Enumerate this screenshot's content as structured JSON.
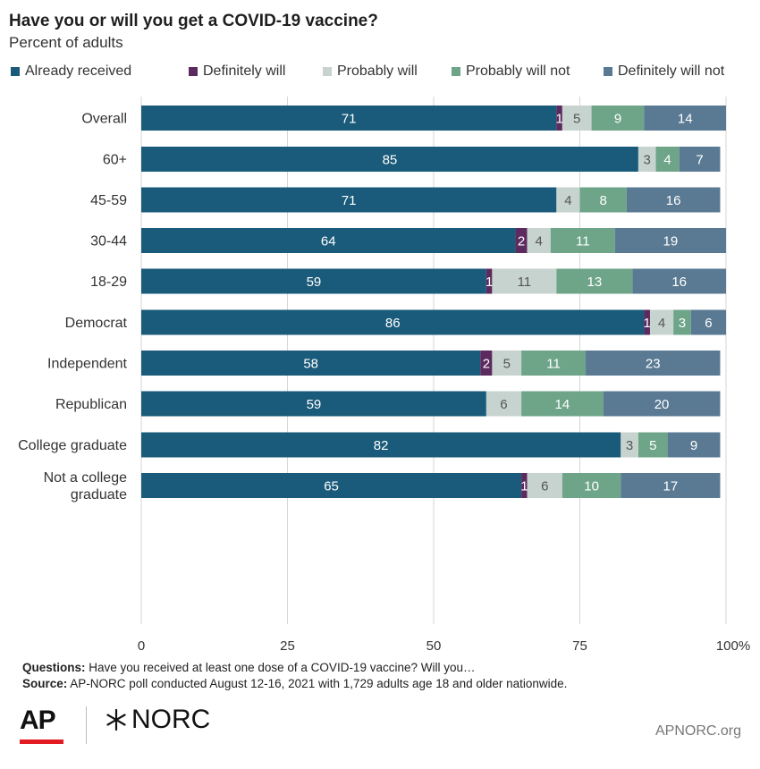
{
  "title": "Have you or will you get a COVID-19 vaccine?",
  "subtitle": "Percent of adults",
  "legend": [
    {
      "label": "Already received",
      "color": "#1a5a7a"
    },
    {
      "label": "Definitely will",
      "color": "#5c2a5e"
    },
    {
      "label": "Probably will",
      "color": "#c7d3ce"
    },
    {
      "label": "Probably will not",
      "color": "#6ea589"
    },
    {
      "label": "Definitely will not",
      "color": "#5a7a93"
    }
  ],
  "chart_data": {
    "type": "bar",
    "orientation": "horizontal",
    "stacked": true,
    "categories": [
      "Overall",
      "60+",
      "45-59",
      "30-44",
      "18-29",
      "Democrat",
      "Independent",
      "Republican",
      "College graduate",
      "Not a college graduate"
    ],
    "category_label_lines": [
      [
        "Overall"
      ],
      [
        "60+"
      ],
      [
        "45-59"
      ],
      [
        "30-44"
      ],
      [
        "18-29"
      ],
      [
        "Democrat"
      ],
      [
        "Independent"
      ],
      [
        "Republican"
      ],
      [
        "College graduate"
      ],
      [
        "Not a college",
        "graduate"
      ]
    ],
    "groups": [
      [
        0
      ],
      [
        1,
        2,
        3,
        4
      ],
      [
        5,
        6,
        7
      ],
      [
        8,
        9
      ]
    ],
    "series": [
      {
        "name": "Already received",
        "color": "#1a5a7a",
        "values": [
          71,
          85,
          71,
          64,
          59,
          86,
          58,
          59,
          82,
          65
        ]
      },
      {
        "name": "Definitely will",
        "color": "#5c2a5e",
        "values": [
          1,
          0,
          0,
          2,
          1,
          1,
          2,
          0,
          0,
          1
        ]
      },
      {
        "name": "Probably will",
        "color": "#c7d3ce",
        "values": [
          5,
          3,
          4,
          4,
          11,
          4,
          5,
          6,
          3,
          6
        ]
      },
      {
        "name": "Probably will not",
        "color": "#6ea589",
        "values": [
          9,
          4,
          8,
          11,
          13,
          3,
          11,
          14,
          5,
          10
        ]
      },
      {
        "name": "Definitely will not",
        "color": "#5a7a93",
        "values": [
          14,
          7,
          16,
          19,
          16,
          6,
          23,
          20,
          9,
          17
        ]
      }
    ],
    "xlim": [
      0,
      100
    ],
    "x_ticks": [
      "0",
      "25",
      "50",
      "75",
      "100%"
    ],
    "grid": true
  },
  "footer": {
    "questions_label": "Questions:",
    "questions_text": "Have you received at least one dose of a COVID-19 vaccine? Will you…",
    "source_label": "Source:",
    "source_text": "AP-NORC poll conducted August 12-16, 2021 with 1,729 adults age 18 and older nationwide."
  },
  "logos": {
    "ap": "AP",
    "norc": "NORC",
    "site": "APNORC.org"
  }
}
